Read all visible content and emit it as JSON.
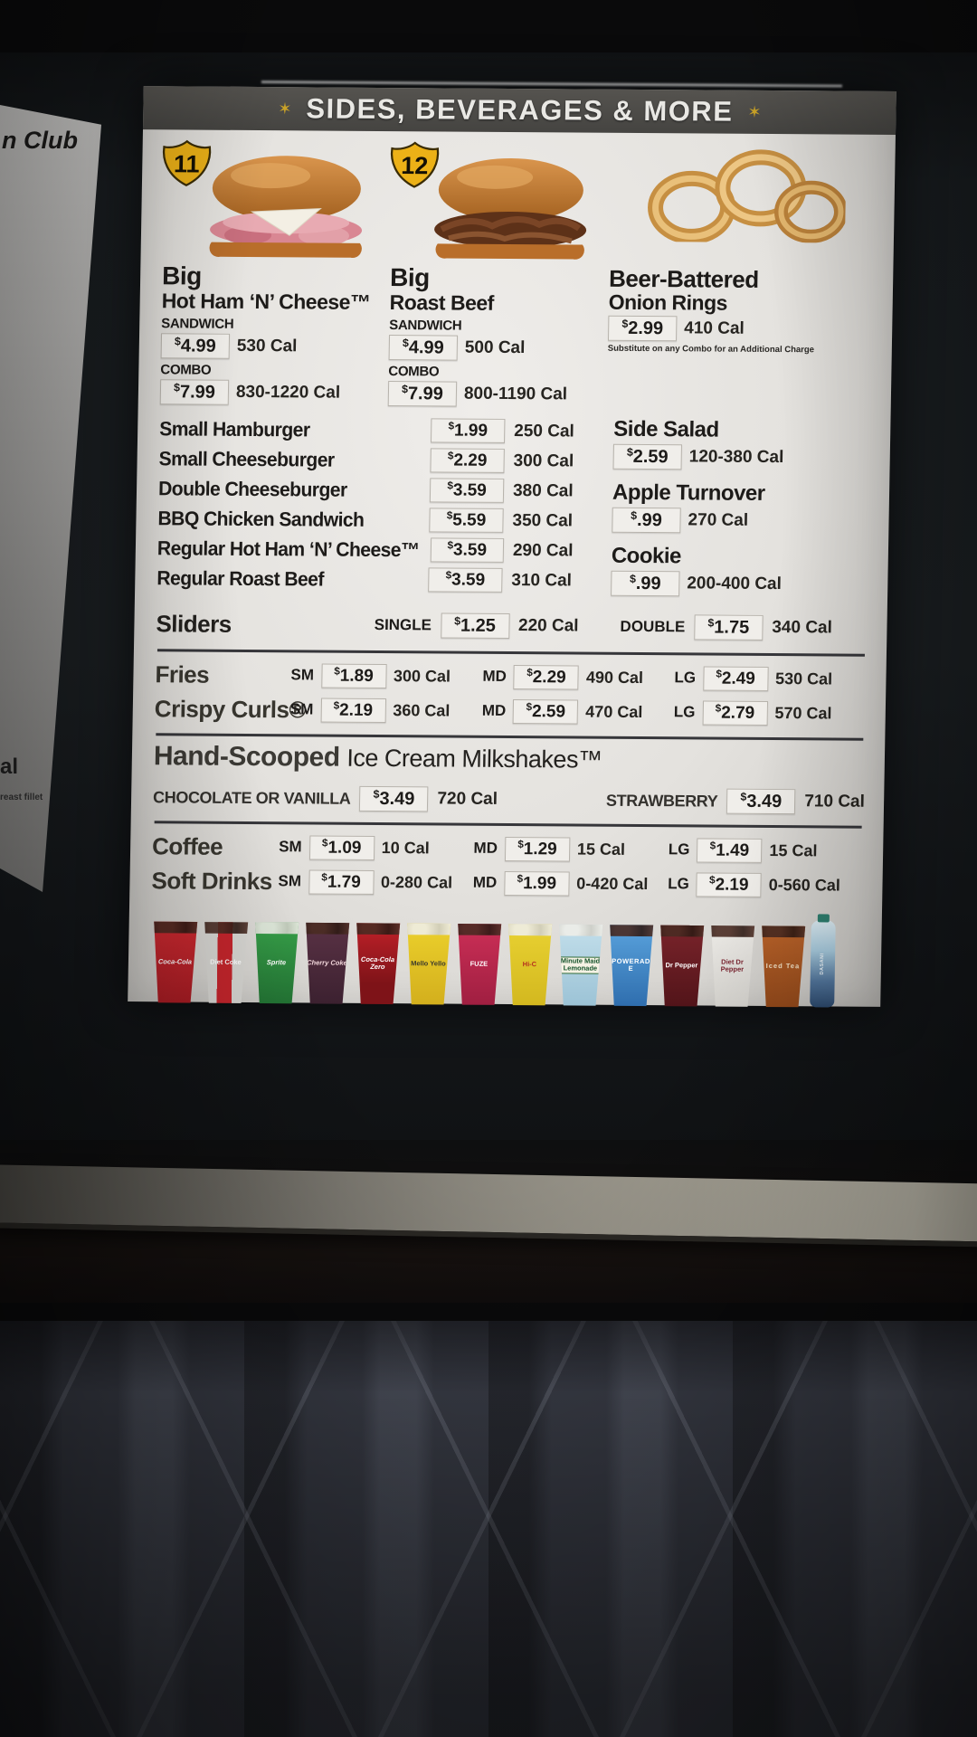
{
  "header": {
    "title": "SIDES, BEVERAGES & MORE",
    "star": "✶"
  },
  "adjacent_panel": {
    "text_top": "n Club",
    "text_mid": "al",
    "text_small": "reast fillet"
  },
  "featured": [
    {
      "badge": "11",
      "line1": "Big",
      "line2": "Hot Ham ‘N’ Cheese™",
      "sandwich_label": "SANDWICH",
      "sandwich_price": "$4.99",
      "sandwich_cal": "530 Cal",
      "combo_label": "COMBO",
      "combo_price": "$7.99",
      "combo_cal": "830-1220 Cal"
    },
    {
      "badge": "12",
      "line1": "Big",
      "line2": "Roast Beef",
      "sandwich_label": "SANDWICH",
      "sandwich_price": "$4.99",
      "sandwich_cal": "500 Cal",
      "combo_label": "COMBO",
      "combo_price": "$7.99",
      "combo_cal": "800-1190 Cal"
    }
  ],
  "onion_rings": {
    "line1": "Beer-Battered",
    "line2": "Onion Rings",
    "price": "$2.99",
    "cal": "410 Cal",
    "note": "Substitute on any Combo for an Additional Charge"
  },
  "items": [
    {
      "name": "Small Hamburger",
      "price": "$1.99",
      "cal": "250 Cal"
    },
    {
      "name": "Small Cheeseburger",
      "price": "$2.29",
      "cal": "300 Cal"
    },
    {
      "name": "Double Cheeseburger",
      "price": "$3.59",
      "cal": "380 Cal"
    },
    {
      "name": "BBQ Chicken Sandwich",
      "price": "$5.59",
      "cal": "350 Cal"
    },
    {
      "name": "Regular Hot Ham ‘N’ Cheese™",
      "price": "$3.59",
      "cal": "290 Cal"
    },
    {
      "name": "Regular Roast Beef",
      "price": "$3.59",
      "cal": "310 Cal"
    }
  ],
  "sides": [
    {
      "name": "Side Salad",
      "price": "$2.59",
      "cal": "120-380 Cal"
    },
    {
      "name": "Apple Turnover",
      "price": "$.99",
      "cal": "270 Cal"
    },
    {
      "name": "Cookie",
      "price": "$.99",
      "cal": "200-400 Cal"
    }
  ],
  "sliders": {
    "name": "Sliders",
    "single_label": "SINGLE",
    "single_price": "$1.25",
    "single_cal": "220 Cal",
    "double_label": "DOUBLE",
    "double_price": "$1.75",
    "double_cal": "340 Cal"
  },
  "fries": {
    "name": "Fries",
    "sizes": [
      {
        "label": "SM",
        "price": "$1.89",
        "cal": "300 Cal"
      },
      {
        "label": "MD",
        "price": "$2.29",
        "cal": "490 Cal"
      },
      {
        "label": "LG",
        "price": "$2.49",
        "cal": "530 Cal"
      }
    ]
  },
  "crispy_curls": {
    "name": "Crispy Curls®",
    "sizes": [
      {
        "label": "SM",
        "price": "$2.19",
        "cal": "360 Cal"
      },
      {
        "label": "MD",
        "price": "$2.59",
        "cal": "470 Cal"
      },
      {
        "label": "LG",
        "price": "$2.79",
        "cal": "570 Cal"
      }
    ]
  },
  "milkshakes": {
    "title_bold": "Hand-Scooped",
    "title_rest": "Ice Cream Milkshakes™",
    "left_label": "CHOCOLATE OR VANILLA",
    "left_price": "$3.49",
    "left_cal": "720 Cal",
    "right_label": "STRAWBERRY",
    "right_price": "$3.49",
    "right_cal": "710 Cal"
  },
  "coffee": {
    "name": "Coffee",
    "sizes": [
      {
        "label": "SM",
        "price": "$1.09",
        "cal": "10 Cal"
      },
      {
        "label": "MD",
        "price": "$1.29",
        "cal": "15 Cal"
      },
      {
        "label": "LG",
        "price": "$1.49",
        "cal": "15 Cal"
      }
    ]
  },
  "soft_drinks": {
    "name": "Soft Drinks",
    "sizes": [
      {
        "label": "SM",
        "price": "$1.79",
        "cal": "0-280 Cal"
      },
      {
        "label": "MD",
        "price": "$1.99",
        "cal": "0-420 Cal"
      },
      {
        "label": "LG",
        "price": "$2.19",
        "cal": "0-560 Cal"
      }
    ]
  },
  "drinks": [
    {
      "label": "Coca-Cola",
      "color": "#c5252c"
    },
    {
      "label": "Diet Coke",
      "color": "#d8d7d3"
    },
    {
      "label": "Sprite",
      "color": "#2f9140"
    },
    {
      "label": "Cherry Coke",
      "color": "#4f2c3c"
    },
    {
      "label": "Coca-Cola Zero",
      "color": "#a31c24"
    },
    {
      "label": "Mello Yello",
      "color": "#e8c72a"
    },
    {
      "label": "FUZE",
      "color": "#c42a52"
    },
    {
      "label": "Hi-C",
      "color": "#e5cd2e"
    },
    {
      "label": "Minute Maid Lemonade",
      "color": "#badbe9"
    },
    {
      "label": "POWERADE",
      "color": "#3f8fd4"
    },
    {
      "label": "Dr Pepper",
      "color": "#671d23"
    },
    {
      "label": "Diet Dr Pepper",
      "color": "#e9e7e3"
    },
    {
      "label": "Iced Tea",
      "color": "#b05a20"
    },
    {
      "label": "DASANI",
      "color": "#9dc6dd"
    }
  ],
  "colors": {
    "board_bg": "#e6e4e0",
    "header_band": "#4d4c49",
    "badge_gold": "#ecb117",
    "star_gold": "#c9a227",
    "frame": "#1b1f22",
    "curtain": "#383b45",
    "ledge": "#a29e92"
  }
}
